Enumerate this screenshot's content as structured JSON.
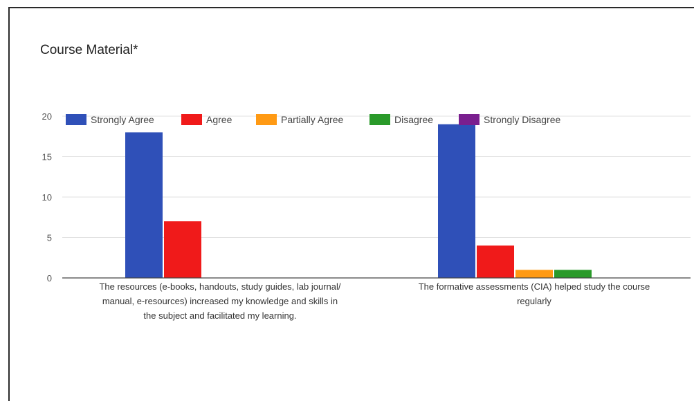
{
  "chart_data": {
    "type": "bar",
    "title": "Course Material*",
    "xlabel": "",
    "ylabel": "",
    "ylim": [
      0,
      20
    ],
    "yticks": [
      0,
      5,
      10,
      15,
      20
    ],
    "grid": true,
    "legend_position": "top",
    "categories": [
      [
        "The resources (e-books, handouts, study guides, lab journal/",
        "manual, e-resources) increased my knowledge and skills in",
        "the subject and facilitated my learning."
      ],
      [
        "The formative assessments (CIA) helped study the course",
        "regularly"
      ]
    ],
    "series": [
      {
        "name": "Strongly Agree",
        "color": "#2f50b8",
        "values": [
          18,
          19
        ]
      },
      {
        "name": "Agree",
        "color": "#f01a1a",
        "values": [
          7,
          4
        ]
      },
      {
        "name": "Partially Agree",
        "color": "#ff9a14",
        "values": [
          0,
          1
        ]
      },
      {
        "name": "Disagree",
        "color": "#2a9a2a",
        "values": [
          0,
          1
        ]
      },
      {
        "name": "Strongly Disagree",
        "color": "#7a1f8f",
        "values": [
          0,
          0
        ]
      }
    ]
  }
}
